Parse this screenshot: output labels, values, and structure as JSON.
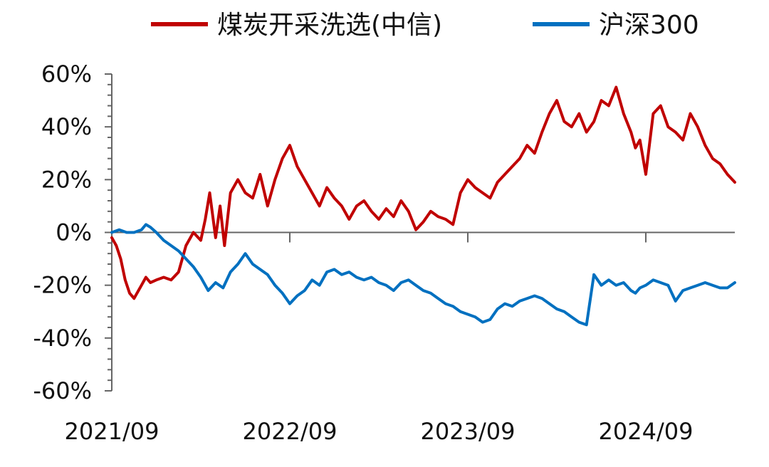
{
  "chart_data": {
    "type": "line",
    "title": "",
    "xlabel": "",
    "ylabel": "",
    "x_unit": "months since 2021/09",
    "xlim": [
      0,
      42
    ],
    "ylim": [
      -60,
      60
    ],
    "y_ticks": [
      60,
      40,
      20,
      0,
      -20,
      -40,
      -60
    ],
    "y_tick_labels": [
      "60%",
      "40%",
      "20%",
      "0%",
      "-20%",
      "-40%",
      "-60%"
    ],
    "x_ticks": [
      0,
      12,
      24,
      36
    ],
    "x_tick_labels": [
      "2021/09",
      "2022/09",
      "2023/09",
      "2024/09"
    ],
    "grid": false,
    "legend_position": "top",
    "series": [
      {
        "name": "煤炭开采洗选(中信)",
        "color": "#C00000",
        "x": [
          0,
          0.3,
          0.6,
          0.9,
          1.2,
          1.5,
          1.8,
          2.0,
          2.3,
          2.6,
          3.0,
          3.5,
          4.0,
          4.5,
          5.0,
          5.5,
          6.0,
          6.3,
          6.6,
          7.0,
          7.3,
          7.6,
          8.0,
          8.5,
          9.0,
          9.5,
          10.0,
          10.5,
          11.0,
          11.5,
          12.0,
          12.5,
          13.0,
          13.5,
          14.0,
          14.5,
          15.0,
          15.5,
          16.0,
          16.5,
          17.0,
          17.5,
          18.0,
          18.5,
          19.0,
          19.5,
          20.0,
          20.5,
          21.0,
          21.5,
          22.0,
          22.5,
          23.0,
          23.5,
          24.0,
          24.5,
          25.0,
          25.5,
          26.0,
          26.5,
          27.0,
          27.5,
          28.0,
          28.5,
          29.0,
          29.5,
          30.0,
          30.5,
          31.0,
          31.5,
          32.0,
          32.5,
          33.0,
          33.5,
          34.0,
          34.5,
          35.0,
          35.3,
          35.6,
          36.0,
          36.5,
          37.0,
          37.5,
          38.0,
          38.5,
          39.0,
          39.5,
          40.0,
          40.5,
          41.0,
          41.5,
          42.0
        ],
        "values": [
          -2,
          -5,
          -10,
          -18,
          -23,
          -25,
          -22,
          -20,
          -17,
          -19,
          -18,
          -17,
          -18,
          -15,
          -5,
          0,
          -3,
          5,
          15,
          -2,
          10,
          -5,
          15,
          20,
          15,
          13,
          22,
          10,
          20,
          28,
          33,
          25,
          20,
          15,
          10,
          17,
          13,
          10,
          5,
          10,
          12,
          8,
          5,
          9,
          6,
          12,
          8,
          1,
          4,
          8,
          6,
          5,
          3,
          15,
          20,
          17,
          15,
          13,
          19,
          22,
          25,
          28,
          33,
          30,
          38,
          45,
          50,
          42,
          40,
          45,
          38,
          42,
          50,
          48,
          55,
          45,
          38,
          32,
          35,
          22,
          45,
          48,
          40,
          38,
          35,
          45,
          40,
          33,
          28,
          26,
          22,
          19
        ]
      },
      {
        "name": "沪深300",
        "color": "#0070C0",
        "x": [
          0,
          0.5,
          1.0,
          1.5,
          2.0,
          2.3,
          2.6,
          3.0,
          3.5,
          4.0,
          4.5,
          5.0,
          5.5,
          6.0,
          6.5,
          7.0,
          7.5,
          8.0,
          8.5,
          9.0,
          9.5,
          10.0,
          10.5,
          11.0,
          11.5,
          12.0,
          12.5,
          13.0,
          13.5,
          14.0,
          14.5,
          15.0,
          15.5,
          16.0,
          16.5,
          17.0,
          17.5,
          18.0,
          18.5,
          19.0,
          19.5,
          20.0,
          20.5,
          21.0,
          21.5,
          22.0,
          22.5,
          23.0,
          23.5,
          24.0,
          24.5,
          25.0,
          25.5,
          26.0,
          26.5,
          27.0,
          27.5,
          28.0,
          28.5,
          29.0,
          29.5,
          30.0,
          30.5,
          31.0,
          31.5,
          32.0,
          32.5,
          33.0,
          33.5,
          34.0,
          34.5,
          35.0,
          35.3,
          35.6,
          36.0,
          36.5,
          37.0,
          37.5,
          38.0,
          38.5,
          39.0,
          39.5,
          40.0,
          40.5,
          41.0,
          41.5,
          42.0
        ],
        "values": [
          0,
          1,
          0,
          0,
          1,
          3,
          2,
          0,
          -3,
          -5,
          -7,
          -10,
          -13,
          -17,
          -22,
          -19,
          -21,
          -15,
          -12,
          -8,
          -12,
          -14,
          -16,
          -20,
          -23,
          -27,
          -24,
          -22,
          -18,
          -20,
          -15,
          -14,
          -16,
          -15,
          -17,
          -18,
          -17,
          -19,
          -20,
          -22,
          -19,
          -18,
          -20,
          -22,
          -23,
          -25,
          -27,
          -28,
          -30,
          -31,
          -32,
          -34,
          -33,
          -29,
          -27,
          -28,
          -26,
          -25,
          -24,
          -25,
          -27,
          -29,
          -30,
          -32,
          -34,
          -35,
          -16,
          -20,
          -18,
          -20,
          -19,
          -22,
          -23,
          -21,
          -20,
          -18,
          -19,
          -20,
          -26,
          -22,
          -21,
          -20,
          -19,
          -20,
          -21,
          -21,
          -19
        ]
      }
    ]
  }
}
